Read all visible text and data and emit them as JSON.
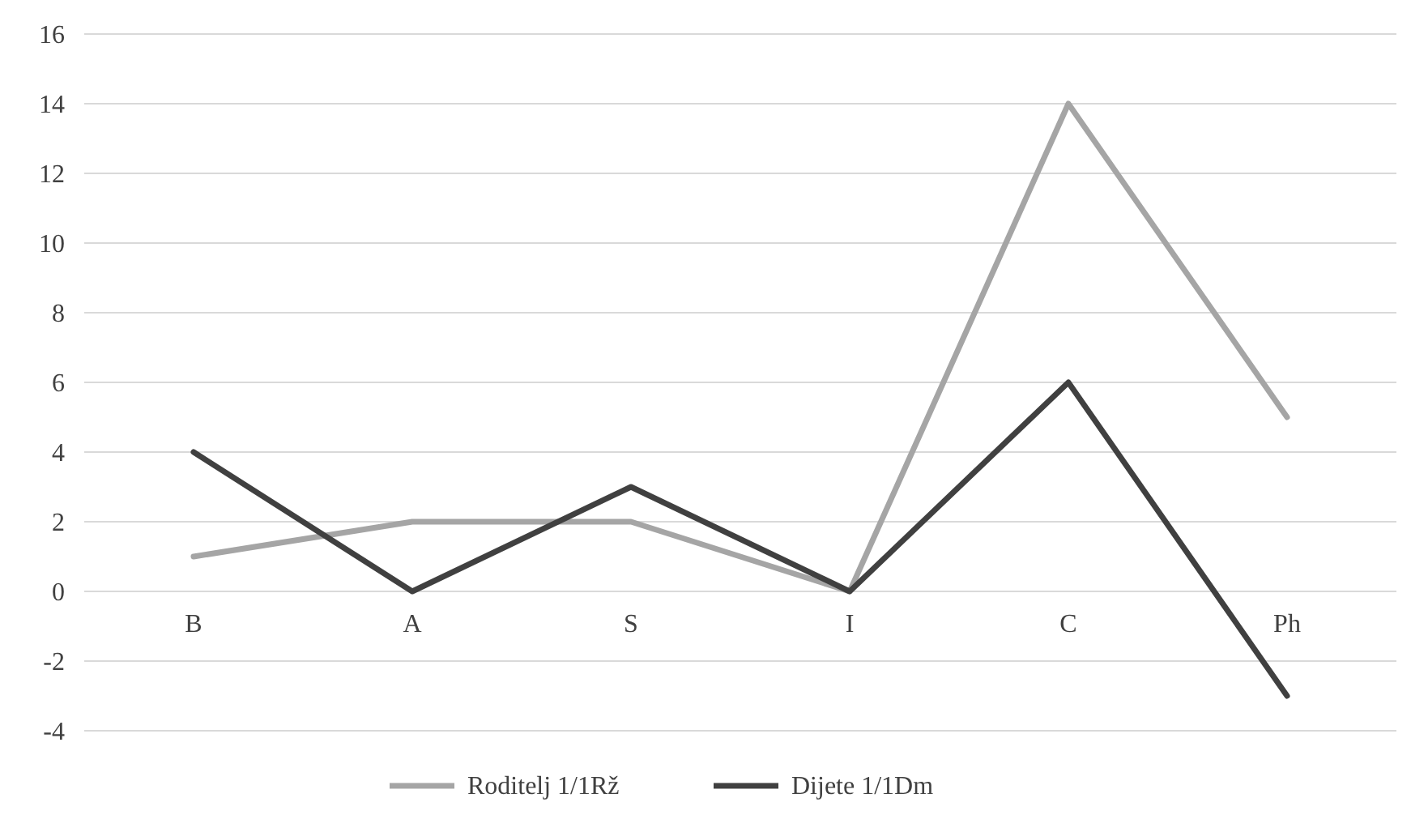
{
  "chart_data": {
    "type": "line",
    "categories": [
      "B",
      "A",
      "S",
      "I",
      "C",
      "Ph"
    ],
    "series": [
      {
        "name": "Roditelj 1/1Rž",
        "color": "#a5a5a5",
        "values": [
          1,
          2,
          2,
          0,
          14,
          5
        ]
      },
      {
        "name": "Dijete 1/1Dm",
        "color": "#404040",
        "values": [
          4,
          0,
          3,
          0,
          6,
          -3
        ]
      }
    ],
    "ylim": [
      -4,
      16
    ],
    "yticks": [
      -4,
      -2,
      0,
      2,
      4,
      6,
      8,
      10,
      12,
      14,
      16
    ],
    "grid": "y",
    "legend": "bottom",
    "marker": "none",
    "line_style": "solid"
  }
}
